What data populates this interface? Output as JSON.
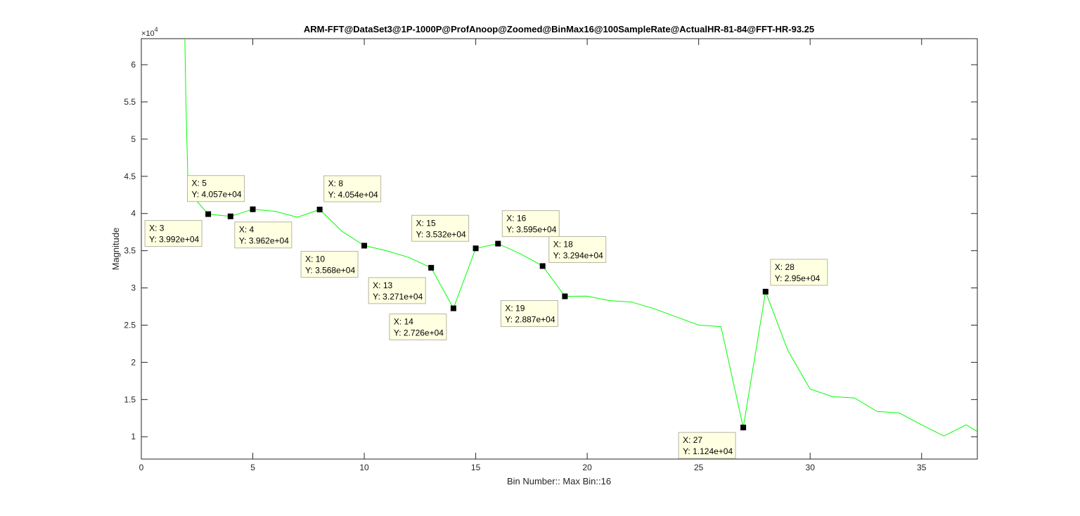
{
  "chart_data": {
    "type": "line",
    "title": "ARM-FFT@DataSet3@1P-1000P@ProfAnoop@Zoomed@BinMax16@100SampleRate@ActualHR-81-84@FFT-HR-93.25",
    "xlabel": "Bin Number:: Max Bin::16",
    "ylabel": "Magnitude",
    "y_exponent_label": "×10",
    "y_exponent_power": "4",
    "xlim": [
      0,
      37.5
    ],
    "ylim": [
      7000,
      63500
    ],
    "x_ticks": [
      0,
      5,
      10,
      15,
      20,
      25,
      30,
      35
    ],
    "x_tick_labels": [
      "0",
      "5",
      "10",
      "15",
      "20",
      "25",
      "30",
      "35"
    ],
    "y_ticks": [
      10000,
      15000,
      20000,
      25000,
      30000,
      35000,
      40000,
      45000,
      50000,
      55000,
      60000
    ],
    "y_tick_labels": [
      "1",
      "1.5",
      "2",
      "2.5",
      "3",
      "3.5",
      "4",
      "4.5",
      "5",
      "5.5",
      "6"
    ],
    "grid": false,
    "line_color": "#00ff00",
    "marker_color": "#000000",
    "tip_fill": "#ffffe1",
    "tip_border": "#b5b5a8",
    "series": [
      {
        "x": [
          1.95,
          2,
          2.1,
          3,
          4,
          5,
          6,
          7,
          8,
          9,
          10,
          11,
          12,
          13,
          14,
          15,
          16,
          17,
          18,
          19,
          20,
          21,
          22,
          23,
          24,
          25,
          26,
          27,
          28,
          29,
          30,
          31,
          32,
          33,
          34,
          35,
          36,
          37,
          37.5
        ],
        "values": [
          64000,
          55000,
          43000,
          39920,
          39620,
          40570,
          40300,
          39500,
          40540,
          37600,
          35680,
          35000,
          34100,
          32710,
          27260,
          35320,
          35950,
          34600,
          32940,
          28870,
          28900,
          28300,
          28100,
          27200,
          26100,
          25000,
          24800,
          11240,
          29500,
          21600,
          16400,
          15400,
          15200,
          13400,
          13200,
          11600,
          10100,
          11600,
          10700
        ]
      }
    ],
    "datatips": [
      {
        "x": 3,
        "y": 39920,
        "x_text": "X: 3",
        "y_text": "Y: 3.992e+04"
      },
      {
        "x": 4,
        "y": 39620,
        "x_text": "X: 4",
        "y_text": "Y: 3.962e+04"
      },
      {
        "x": 5,
        "y": 40570,
        "x_text": "X: 5",
        "y_text": "Y: 4.057e+04"
      },
      {
        "x": 8,
        "y": 40540,
        "x_text": "X: 8",
        "y_text": "Y: 4.054e+04"
      },
      {
        "x": 10,
        "y": 35680,
        "x_text": "X: 10",
        "y_text": "Y: 3.568e+04"
      },
      {
        "x": 13,
        "y": 32710,
        "x_text": "X: 13",
        "y_text": "Y: 3.271e+04"
      },
      {
        "x": 14,
        "y": 27260,
        "x_text": "X: 14",
        "y_text": "Y: 2.726e+04"
      },
      {
        "x": 15,
        "y": 35320,
        "x_text": "X: 15",
        "y_text": "Y: 3.532e+04"
      },
      {
        "x": 16,
        "y": 35950,
        "x_text": "X: 16",
        "y_text": "Y: 3.595e+04"
      },
      {
        "x": 18,
        "y": 32940,
        "x_text": "X: 18",
        "y_text": "Y: 3.294e+04"
      },
      {
        "x": 19,
        "y": 28870,
        "x_text": "X: 19",
        "y_text": "Y: 2.887e+04"
      },
      {
        "x": 27,
        "y": 11240,
        "x_text": "X: 27",
        "y_text": "Y: 1.124e+04"
      },
      {
        "x": 28,
        "y": 29500,
        "x_text": "X: 28",
        "y_text": "Y: 2.95e+04"
      }
    ]
  }
}
